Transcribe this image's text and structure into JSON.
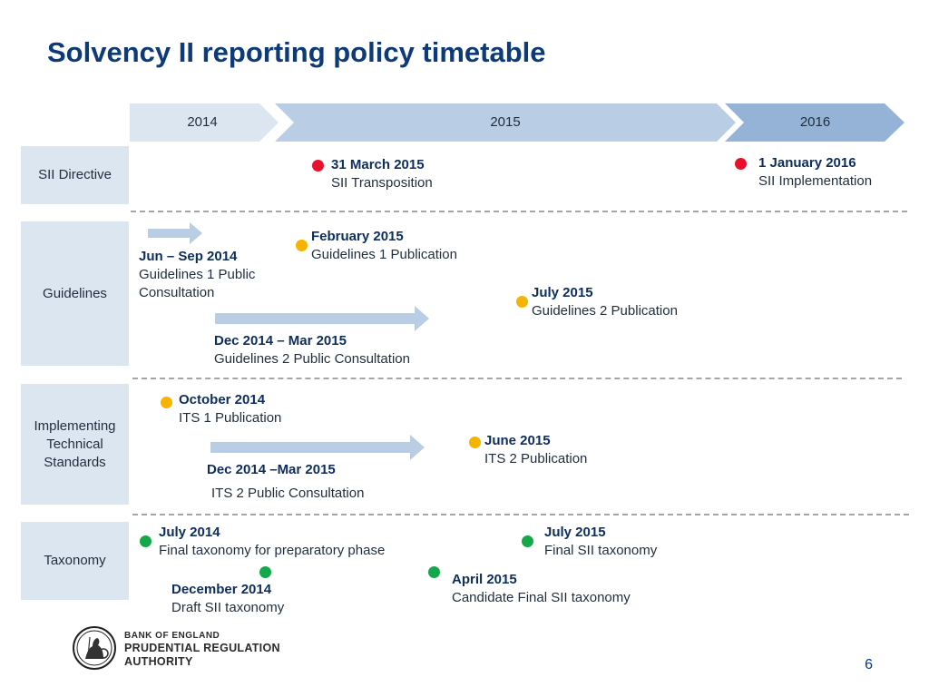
{
  "title": "Solvency II reporting policy timetable",
  "years": [
    "2014",
    "2015",
    "2016"
  ],
  "rows": {
    "directive": "SII Directive",
    "guidelines": "Guidelines",
    "its": "Implementing Technical Standards",
    "taxonomy": "Taxonomy"
  },
  "events": {
    "sii_transposition": {
      "date": "31 March 2015",
      "text": "SII Transposition",
      "marker": "red"
    },
    "sii_implementation": {
      "date": "1 January 2016",
      "text": "SII Implementation",
      "marker": "red"
    },
    "gl1_consultation": {
      "date": "Jun – Sep 2014",
      "text1": "Guidelines 1 Public",
      "text2": "Consultation",
      "marker": "arrow"
    },
    "gl1_publication": {
      "date": "February 2015",
      "text": "Guidelines 1 Publication",
      "marker": "amber"
    },
    "gl2_publication": {
      "date": "July 2015",
      "text": "Guidelines 2 Publication",
      "marker": "amber"
    },
    "gl2_consultation": {
      "date": "Dec 2014 – Mar 2015",
      "text": "Guidelines 2 Public Consultation",
      "marker": "arrow"
    },
    "its1_publication": {
      "date": "October 2014",
      "text": "ITS 1 Publication",
      "marker": "amber"
    },
    "its2_publication": {
      "date": "June 2015",
      "text": "ITS 2 Publication",
      "marker": "amber"
    },
    "its2_consultation": {
      "date": "Dec 2014 –Mar 2015",
      "text": "ITS 2 Public Consultation",
      "marker": "arrow"
    },
    "tax_prep": {
      "date": "July 2014",
      "text": "Final taxonomy for preparatory phase",
      "marker": "green"
    },
    "tax_final": {
      "date": "July 2015",
      "text": "Final SII taxonomy",
      "marker": "green"
    },
    "tax_draft": {
      "date": "December 2014",
      "text": "Draft SII taxonomy",
      "marker": "green"
    },
    "tax_candidate": {
      "date": "April 2015",
      "text": "Candidate Final SII taxonomy",
      "marker": "green"
    }
  },
  "colors": {
    "title": "#0d3a78",
    "year_2014": "#dce6f1",
    "year_2015": "#b9cde5",
    "year_2016": "#95b3d7",
    "row_label_bg": "#dce6f1",
    "red_marker": "#e8112d",
    "amber_marker": "#f4b400",
    "green_marker": "#15a84b",
    "arrow": "#b9cde5"
  },
  "brand": {
    "line1": "BANK OF ENGLAND",
    "line2": "PRUDENTIAL REGULATION",
    "line3": "AUTHORITY",
    "logo_icon": "britannia-seal-icon"
  },
  "page_number": "6"
}
